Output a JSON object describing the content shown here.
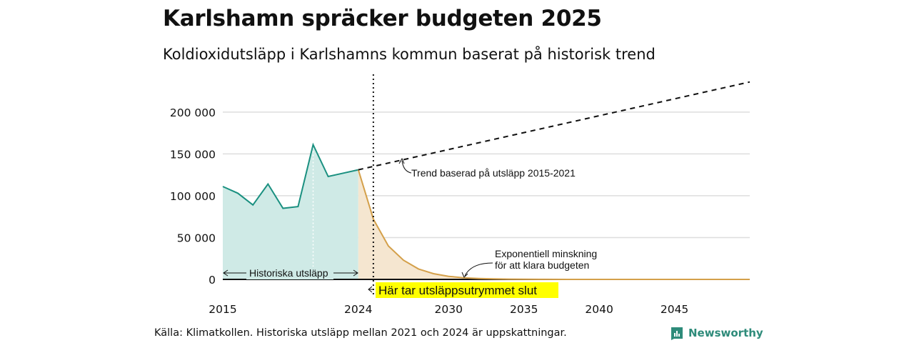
{
  "chart_data": {
    "type": "line",
    "title": "Karlshamn spräcker budgeten 2025",
    "subtitle": "Koldioxidutsläpp i Karlshamns kommun baserat på historisk trend",
    "xlim": [
      2015,
      2050
    ],
    "ylim": [
      0,
      240000
    ],
    "x_ticks": [
      2015,
      2024,
      2030,
      2035,
      2040,
      2045
    ],
    "y_ticks": [
      0,
      50000,
      100000,
      150000,
      200000
    ],
    "y_tick_labels": [
      "0",
      "50 000",
      "100 000",
      "150 000",
      "200 000"
    ],
    "grid": true,
    "series": [
      {
        "role": "historical",
        "color": "#1a9080",
        "fill": "#cfeae6",
        "x": [
          2015,
          2016,
          2017,
          2018,
          2019,
          2020,
          2021,
          2022,
          2023,
          2024
        ],
        "y": [
          111000,
          103000,
          89000,
          114000,
          85000,
          87000,
          161000,
          123000,
          127000,
          131000
        ]
      },
      {
        "role": "trend",
        "color": "#111111",
        "style": "dashed",
        "x": [
          2024,
          2050
        ],
        "y": [
          131000,
          236000
        ]
      },
      {
        "role": "budget",
        "color": "#d4a04a",
        "fill": "#f5e6d0",
        "x": [
          2024,
          2025,
          2026,
          2027,
          2028,
          2029,
          2030,
          2031,
          2032,
          2033,
          2034,
          2035,
          2036,
          2038,
          2040,
          2045,
          2050
        ],
        "y": [
          131000,
          72000,
          40000,
          23000,
          12500,
          6800,
          3700,
          2000,
          1100,
          600,
          330,
          180,
          100,
          30,
          10,
          0,
          0
        ]
      }
    ],
    "annotations": {
      "trend": "Trend baserad på utsläpp 2015-2021",
      "exp_line1": "Exponentiell minskning",
      "exp_line2": "för att klara budgeten",
      "historical": "Historiska utsläpp",
      "budget_end": "Här tar utsläppsutrymmet slut",
      "budget_end_year": 2025
    }
  },
  "footer": {
    "source": "Källa: Klimatkollen. Historiska utsläpp mellan 2021 och 2024 är uppskattningar.",
    "logo_text": "Newsworthy"
  }
}
